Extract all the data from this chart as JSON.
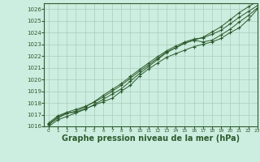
{
  "bg_color": "#cceee0",
  "grid_color": "#aaccbb",
  "line_color": "#2d5a2d",
  "xlabel": "Graphe pression niveau de la mer (hPa)",
  "xlabel_fontsize": 7,
  "xlim": [
    -0.5,
    23
  ],
  "ylim": [
    1016,
    1026.5
  ],
  "xticks": [
    0,
    1,
    2,
    3,
    4,
    5,
    6,
    7,
    8,
    9,
    10,
    11,
    12,
    13,
    14,
    15,
    16,
    17,
    18,
    19,
    20,
    21,
    22,
    23
  ],
  "yticks": [
    1016,
    1017,
    1018,
    1019,
    1020,
    1021,
    1022,
    1023,
    1024,
    1025,
    1026
  ],
  "series": [
    [
      1016.2,
      1016.8,
      1017.15,
      1017.2,
      1017.5,
      1017.8,
      1018.1,
      1018.4,
      1019.0,
      1019.5,
      1020.3,
      1020.9,
      1021.4,
      1021.9,
      1022.2,
      1022.5,
      1022.8,
      1023.0,
      1023.2,
      1023.5,
      1024.0,
      1024.4,
      1025.1,
      1026.0
    ],
    [
      1016.3,
      1016.9,
      1017.2,
      1017.45,
      1017.7,
      1018.05,
      1018.5,
      1019.0,
      1019.5,
      1020.1,
      1020.7,
      1021.25,
      1021.8,
      1022.35,
      1022.7,
      1023.1,
      1023.35,
      1023.2,
      1023.35,
      1023.8,
      1024.3,
      1024.9,
      1025.45,
      1026.1
    ],
    [
      1016.15,
      1016.7,
      1017.1,
      1017.3,
      1017.65,
      1018.1,
      1018.65,
      1019.15,
      1019.65,
      1020.25,
      1020.85,
      1021.4,
      1021.95,
      1022.45,
      1022.85,
      1023.2,
      1023.45,
      1023.55,
      1023.85,
      1024.2,
      1024.75,
      1025.3,
      1025.8,
      1026.3
    ],
    [
      1016.0,
      1016.55,
      1016.85,
      1017.15,
      1017.45,
      1017.85,
      1018.3,
      1018.75,
      1019.2,
      1019.85,
      1020.5,
      1021.1,
      1021.7,
      1022.3,
      1022.7,
      1023.1,
      1023.35,
      1023.6,
      1024.05,
      1024.5,
      1025.1,
      1025.7,
      1026.2,
      1026.65
    ]
  ]
}
